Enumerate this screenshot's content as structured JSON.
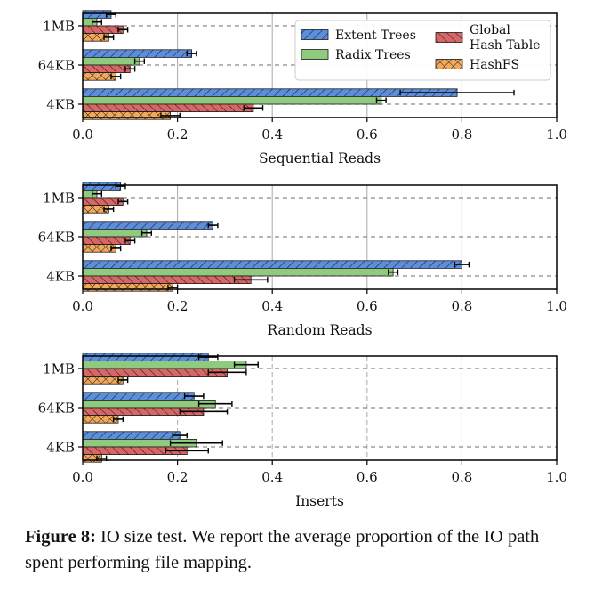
{
  "colors": {
    "Extent Trees": "#5b8fde",
    "Radix Trees": "#8fca7f",
    "Global Hash Table": "#d96666",
    "HashFS": "#f3a95a"
  },
  "legend": {
    "labels": [
      "Extent Trees",
      "Radix Trees",
      "Global\nHash Table",
      "HashFS"
    ],
    "placement": "upper-right of first panel"
  },
  "chart_data": [
    {
      "type": "bar",
      "orientation": "horizontal",
      "xlabel": "Sequential Reads",
      "xlim": [
        0.0,
        1.0
      ],
      "xticks": [
        "0.0",
        "0.2",
        "0.4",
        "0.6",
        "0.8",
        "1.0"
      ],
      "categories": [
        "1MB",
        "64KB",
        "4KB"
      ],
      "grid": "vertical solid, horizontal dashed at categories",
      "series": [
        {
          "name": "Extent Trees",
          "values": [
            0.06,
            0.23,
            0.79
          ],
          "errors": [
            0.01,
            0.01,
            0.12
          ]
        },
        {
          "name": "Radix Trees",
          "values": [
            0.03,
            0.12,
            0.63
          ],
          "errors": [
            0.01,
            0.01,
            0.01
          ]
        },
        {
          "name": "Global Hash Table",
          "values": [
            0.085,
            0.1,
            0.36
          ],
          "errors": [
            0.01,
            0.01,
            0.02
          ]
        },
        {
          "name": "HashFS",
          "values": [
            0.055,
            0.07,
            0.185
          ],
          "errors": [
            0.01,
            0.01,
            0.02
          ]
        }
      ]
    },
    {
      "type": "bar",
      "orientation": "horizontal",
      "xlabel": "Random Reads",
      "xlim": [
        0.0,
        1.0
      ],
      "xticks": [
        "0.0",
        "0.2",
        "0.4",
        "0.6",
        "0.8",
        "1.0"
      ],
      "categories": [
        "1MB",
        "64KB",
        "4KB"
      ],
      "grid": "vertical solid, horizontal dashed at categories",
      "series": [
        {
          "name": "Extent Trees",
          "values": [
            0.08,
            0.275,
            0.8
          ],
          "errors": [
            0.01,
            0.01,
            0.015
          ]
        },
        {
          "name": "Radix Trees",
          "values": [
            0.03,
            0.135,
            0.655
          ],
          "errors": [
            0.01,
            0.01,
            0.01
          ]
        },
        {
          "name": "Global Hash Table",
          "values": [
            0.085,
            0.1,
            0.355
          ],
          "errors": [
            0.01,
            0.01,
            0.035
          ]
        },
        {
          "name": "HashFS",
          "values": [
            0.055,
            0.07,
            0.19
          ],
          "errors": [
            0.01,
            0.01,
            0.01
          ]
        }
      ]
    },
    {
      "type": "bar",
      "orientation": "horizontal",
      "xlabel": "Inserts",
      "xlim": [
        0.0,
        1.0
      ],
      "xticks": [
        "0.0",
        "0.2",
        "0.4",
        "0.6",
        "0.8",
        "1.0"
      ],
      "categories": [
        "1MB",
        "64KB",
        "4KB"
      ],
      "grid": "vertical dashed, horizontal dashed at categories",
      "series": [
        {
          "name": "Extent Trees",
          "values": [
            0.265,
            0.235,
            0.205
          ],
          "errors": [
            0.02,
            0.02,
            0.015
          ]
        },
        {
          "name": "Radix Trees",
          "values": [
            0.345,
            0.28,
            0.24
          ],
          "errors": [
            0.025,
            0.035,
            0.055
          ]
        },
        {
          "name": "Global Hash Table",
          "values": [
            0.305,
            0.255,
            0.22
          ],
          "errors": [
            0.04,
            0.05,
            0.045
          ]
        },
        {
          "name": "HashFS",
          "values": [
            0.085,
            0.075,
            0.04
          ],
          "errors": [
            0.01,
            0.01,
            0.01
          ]
        }
      ]
    }
  ],
  "caption": {
    "label": "Figure 8:",
    "text": " IO size test. We report the average proportion of the IO path spent performing file mapping."
  }
}
